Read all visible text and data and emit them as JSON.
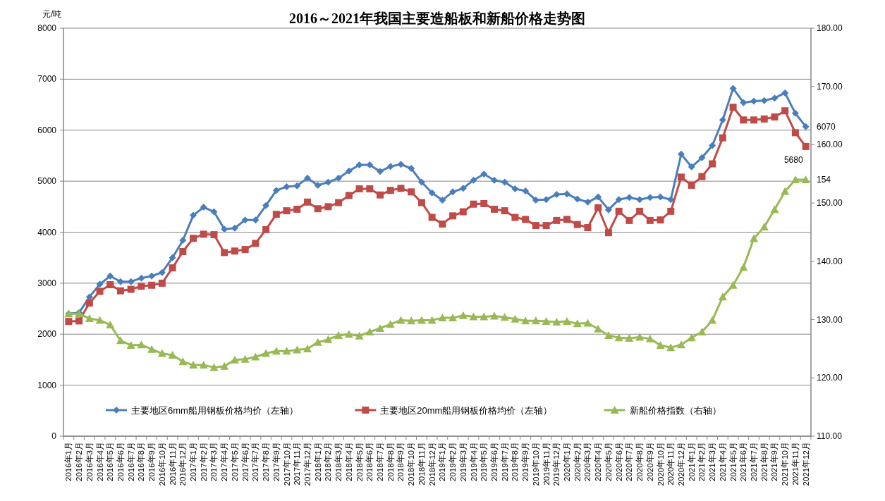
{
  "chart_data": {
    "type": "line",
    "title": "2016～2021年我国主要造船板和新船价格走势图",
    "ylabel": "元/吨",
    "categories": [
      "2016年1月",
      "2016年2月",
      "2016年3月",
      "2016年4月",
      "2016年5月",
      "2016年6月",
      "2016年7月",
      "2016年8月",
      "2016年9月",
      "2016年10月",
      "2016年11月",
      "2016年12月",
      "2017年1月",
      "2017年2月",
      "2017年3月",
      "2017年4月",
      "2017年5月",
      "2017年6月",
      "2017年7月",
      "2017年8月",
      "2017年9月",
      "2017年10月",
      "2017年11月",
      "2017年12月",
      "2018年1月",
      "2018年2月",
      "2018年3月",
      "2018年4月",
      "2018年5月",
      "2018年6月",
      "2018年7月",
      "2018年8月",
      "2018年9月",
      "2018年10月",
      "2018年11月",
      "2018年12月",
      "2019年1月",
      "2019年2月",
      "2019年3月",
      "2019年4月",
      "2019年5月",
      "2019年6月",
      "2019年7月",
      "2019年8月",
      "2019年9月",
      "2019年10月",
      "2019年11月",
      "2019年12月",
      "2020年1月",
      "2020年2月",
      "2020年3月",
      "2020年4月",
      "2020年5月",
      "2020年6月",
      "2020年7月",
      "2020年8月",
      "2020年9月",
      "2020年10月",
      "2020年11月",
      "2020年12月",
      "2021年1月",
      "2021年2月",
      "2021年3月",
      "2021年4月",
      "2021年5月",
      "2021年6月",
      "2021年7月",
      "2021年8月",
      "2021年9月",
      "2021年10月",
      "2021年11月",
      "2021年12月"
    ],
    "series": [
      {
        "name": "主要地区6mm船用钢板价格均价（左轴）",
        "color": "#4a7ebb",
        "marker": "diamond",
        "values": [
          2400,
          2420,
          2730,
          2980,
          3140,
          3030,
          3030,
          3100,
          3140,
          3210,
          3500,
          3840,
          4330,
          4490,
          4400,
          4060,
          4080,
          4240,
          4240,
          4520,
          4820,
          4890,
          4910,
          5060,
          4920,
          4980,
          5060,
          5200,
          5320,
          5320,
          5190,
          5290,
          5330,
          5250,
          4980,
          4770,
          4630,
          4790,
          4860,
          5020,
          5140,
          5020,
          4980,
          4850,
          4810,
          4630,
          4640,
          4740,
          4750,
          4650,
          4590,
          4690,
          4440,
          4640,
          4680,
          4640,
          4680,
          4690,
          4640,
          5530,
          5280,
          5460,
          5700,
          6200,
          6820,
          6540,
          6570,
          6580,
          6630,
          6730,
          6330,
          6070
        ],
        "value_labels": [
          null,
          null,
          null,
          null,
          null,
          null,
          null,
          null,
          null,
          null,
          null,
          null,
          null,
          null,
          null,
          null,
          null,
          null,
          null,
          null,
          null,
          null,
          null,
          null,
          null,
          null,
          null,
          null,
          null,
          null,
          null,
          null,
          null,
          null,
          null,
          null,
          null,
          null,
          null,
          null,
          null,
          null,
          null,
          null,
          null,
          null,
          null,
          null,
          null,
          null,
          null,
          null,
          null,
          null,
          null,
          null,
          null,
          null,
          null,
          null,
          null,
          null,
          null,
          null,
          null,
          null,
          null,
          null,
          null,
          null,
          null,
          "6070"
        ]
      },
      {
        "name": "主要地区20mm船用钢板价格均价（左轴）",
        "color": "#be4b48",
        "marker": "square",
        "values": [
          2250,
          2260,
          2610,
          2840,
          2970,
          2850,
          2880,
          2940,
          2960,
          3000,
          3300,
          3620,
          3880,
          3960,
          3950,
          3600,
          3630,
          3660,
          3780,
          4050,
          4350,
          4420,
          4450,
          4590,
          4460,
          4500,
          4580,
          4720,
          4850,
          4850,
          4730,
          4820,
          4860,
          4790,
          4580,
          4290,
          4160,
          4320,
          4400,
          4550,
          4560,
          4450,
          4420,
          4290,
          4250,
          4130,
          4130,
          4230,
          4250,
          4150,
          4090,
          4480,
          3990,
          4410,
          4230,
          4410,
          4230,
          4240,
          4410,
          5080,
          4920,
          5090,
          5340,
          5850,
          6450,
          6200,
          6200,
          6220,
          6260,
          6380,
          5950,
          5680
        ],
        "value_labels": [
          null,
          null,
          null,
          null,
          null,
          null,
          null,
          null,
          null,
          null,
          null,
          null,
          null,
          null,
          null,
          null,
          null,
          null,
          null,
          null,
          null,
          null,
          null,
          null,
          null,
          null,
          null,
          null,
          null,
          null,
          null,
          null,
          null,
          null,
          null,
          null,
          null,
          null,
          null,
          null,
          null,
          null,
          null,
          null,
          null,
          null,
          null,
          null,
          null,
          null,
          null,
          null,
          null,
          null,
          null,
          null,
          null,
          null,
          null,
          null,
          null,
          null,
          null,
          null,
          null,
          null,
          null,
          null,
          null,
          null,
          null,
          "5680"
        ]
      },
      {
        "name": "新船价格指数（右轴）",
        "color": "#98b954",
        "marker": "triangle",
        "axis": "y2",
        "values": [
          131,
          131,
          130.2,
          129.9,
          129.1,
          126.4,
          125.6,
          125.7,
          124.9,
          124.2,
          123.9,
          122.8,
          122.2,
          122.2,
          121.8,
          122.0,
          123.1,
          123.2,
          123.6,
          124.2,
          124.6,
          124.6,
          124.8,
          125.0,
          126.1,
          126.6,
          127.3,
          127.5,
          127.2,
          127.9,
          128.5,
          129.2,
          129.9,
          129.8,
          129.9,
          129.9,
          130.3,
          130.3,
          130.7,
          130.5,
          130.5,
          130.6,
          130.4,
          130.1,
          129.8,
          129.8,
          129.7,
          129.6,
          129.7,
          129.3,
          129.4,
          128.4,
          127.3,
          126.9,
          126.8,
          127.0,
          126.7,
          125.6,
          125.2,
          125.7,
          126.9,
          127.9,
          129.9,
          133.9,
          135.9,
          139.0,
          143.9,
          145.9,
          148.9,
          152.0,
          154,
          154
        ],
        "value_labels": [
          null,
          null,
          null,
          null,
          null,
          null,
          null,
          null,
          null,
          null,
          null,
          null,
          null,
          null,
          null,
          null,
          null,
          null,
          null,
          null,
          null,
          null,
          null,
          null,
          null,
          null,
          null,
          null,
          null,
          null,
          null,
          null,
          null,
          null,
          null,
          null,
          null,
          null,
          null,
          null,
          null,
          null,
          null,
          null,
          null,
          null,
          null,
          null,
          null,
          null,
          null,
          null,
          null,
          null,
          null,
          null,
          null,
          null,
          null,
          null,
          null,
          null,
          null,
          null,
          null,
          null,
          null,
          null,
          null,
          null,
          null,
          "154"
        ]
      }
    ],
    "ylim": [
      0,
      8000
    ],
    "yticks": [
      0,
      1000,
      2000,
      3000,
      4000,
      5000,
      6000,
      7000,
      8000
    ],
    "y2lim": [
      110,
      180
    ],
    "y2ticks": [
      {
        "value": 110,
        "label": "110.00"
      },
      {
        "value": 120,
        "label": "120.00"
      },
      {
        "value": 130,
        "label": "130.00"
      },
      {
        "value": 140,
        "label": "140.00"
      },
      {
        "value": 150,
        "label": "150.00"
      },
      {
        "value": 160,
        "label": "160.00"
      },
      {
        "value": 170,
        "label": "170.00"
      },
      {
        "value": 180,
        "label": "180.00"
      }
    ],
    "grid": "y",
    "legend": "bottom",
    "line_style": "solid"
  }
}
